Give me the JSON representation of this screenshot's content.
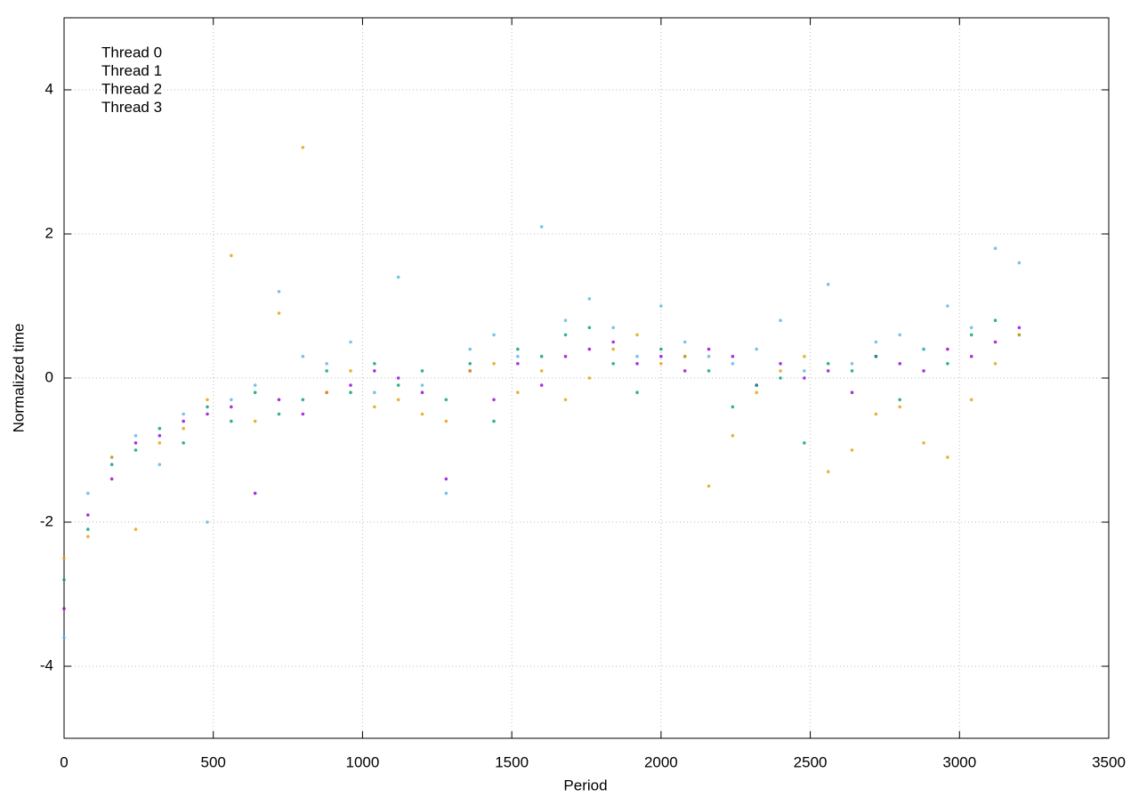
{
  "chart_data": {
    "type": "scatter",
    "xlabel": "Period",
    "ylabel": "Normalized time",
    "xlim": [
      0,
      3500
    ],
    "ylim": [
      -5,
      5
    ],
    "xticks": [
      0,
      500,
      1000,
      1500,
      2000,
      2500,
      3000,
      3500
    ],
    "yticks": [
      -4,
      -2,
      0,
      2,
      4
    ],
    "grid": true,
    "legend": "top-left",
    "x": [
      0,
      80,
      160,
      240,
      320,
      400,
      480,
      560,
      640,
      720,
      800,
      880,
      960,
      1040,
      1120,
      1200,
      1280,
      1360,
      1440,
      1520,
      1600,
      1680,
      1760,
      1840,
      1920,
      2000,
      2080,
      2160,
      2240,
      2320,
      2400,
      2480,
      2560,
      2640,
      2720,
      2800,
      2880,
      2960,
      3040,
      3120,
      3200
    ],
    "series": [
      {
        "name": "Thread 0",
        "color": "#9400d3",
        "values": [
          -3.2,
          -1.9,
          -1.4,
          -0.9,
          -0.8,
          -0.6,
          -0.5,
          -0.4,
          -1.6,
          -0.3,
          -0.5,
          -0.2,
          -0.1,
          0.1,
          0.0,
          -0.2,
          -1.4,
          0.1,
          -0.3,
          0.2,
          -0.1,
          0.3,
          0.4,
          0.5,
          0.2,
          0.3,
          0.1,
          0.4,
          0.3,
          -0.1,
          0.2,
          0.0,
          0.1,
          -0.2,
          0.3,
          0.2,
          0.1,
          0.4,
          0.3,
          0.5,
          0.7
        ]
      },
      {
        "name": "Thread 1",
        "color": "#009e73",
        "values": [
          -2.8,
          -2.1,
          -1.2,
          -1.0,
          -0.7,
          -0.9,
          -0.4,
          -0.6,
          -0.2,
          -0.5,
          -0.3,
          0.1,
          -0.2,
          0.2,
          -0.1,
          0.1,
          -0.3,
          0.2,
          -0.6,
          0.4,
          0.3,
          0.6,
          0.7,
          0.2,
          -0.2,
          0.4,
          0.3,
          0.1,
          -0.4,
          -0.1,
          0.0,
          -0.9,
          0.2,
          0.1,
          0.3,
          -0.3,
          0.4,
          0.2,
          0.6,
          0.8,
          0.6
        ]
      },
      {
        "name": "Thread 2",
        "color": "#56b4e9",
        "values": [
          -3.6,
          -1.6,
          -1.1,
          -0.8,
          -1.2,
          -0.5,
          -2.0,
          -0.3,
          -0.1,
          1.2,
          0.3,
          0.2,
          0.5,
          -0.2,
          1.4,
          -0.1,
          -1.6,
          0.4,
          0.6,
          0.3,
          2.1,
          0.8,
          1.1,
          0.7,
          0.3,
          1.0,
          0.5,
          0.3,
          0.2,
          0.4,
          0.8,
          0.1,
          1.3,
          0.2,
          0.5,
          0.6,
          0.4,
          1.0,
          0.7,
          1.8,
          1.6
        ]
      },
      {
        "name": "Thread 3",
        "color": "#e69f00",
        "values": [
          -2.5,
          -2.2,
          -1.1,
          -2.1,
          -0.9,
          -0.7,
          -0.3,
          1.7,
          -0.6,
          0.9,
          3.2,
          -0.2,
          0.1,
          -0.4,
          -0.3,
          -0.5,
          -0.6,
          0.1,
          0.2,
          -0.2,
          0.1,
          -0.3,
          0.0,
          0.4,
          0.6,
          0.2,
          0.3,
          -1.5,
          -0.8,
          -0.2,
          0.1,
          0.3,
          -1.3,
          -1.0,
          -0.5,
          -0.4,
          -0.9,
          -1.1,
          -0.3,
          0.2,
          0.6
        ]
      }
    ]
  }
}
